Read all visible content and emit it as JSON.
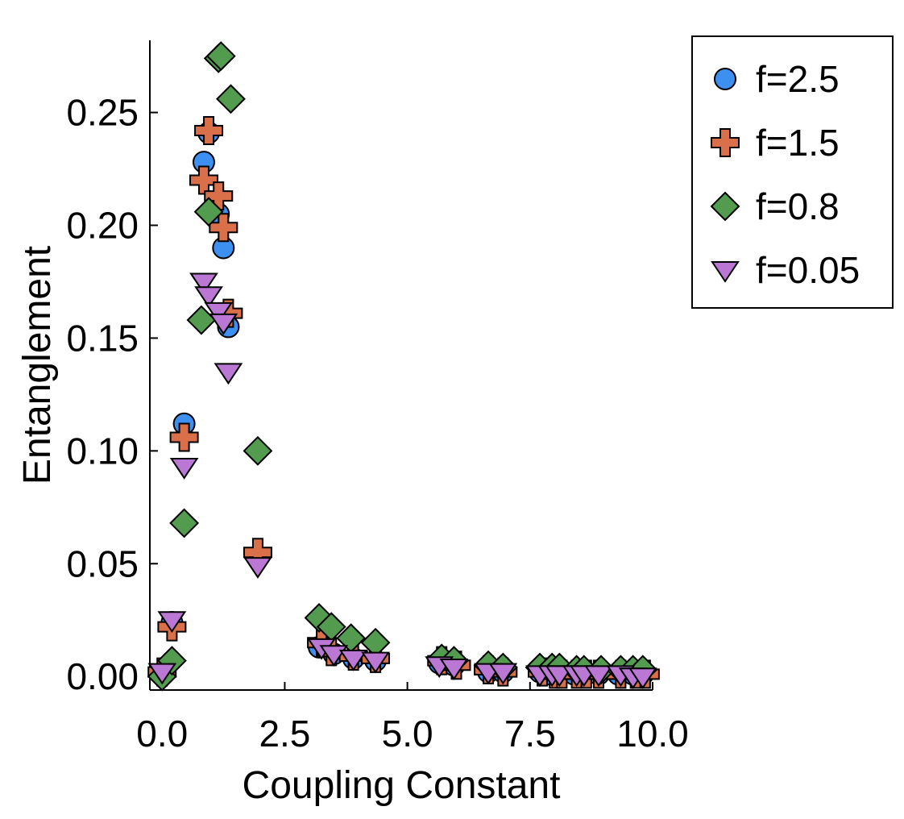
{
  "chart_data": {
    "type": "scatter",
    "title": "",
    "xlabel": "Coupling Constant",
    "ylabel": "Entanglement",
    "xlim": [
      -0.25,
      10.0
    ],
    "ylim": [
      -0.006,
      0.282
    ],
    "xticks": [
      0.0,
      2.5,
      5.0,
      7.5,
      10.0
    ],
    "xtick_labels": [
      "0.0",
      "2.5",
      "5.0",
      "7.5",
      "10.0"
    ],
    "yticks": [
      0.0,
      0.05,
      0.1,
      0.15,
      0.2,
      0.25
    ],
    "ytick_labels": [
      "0.00",
      "0.05",
      "0.10",
      "0.15",
      "0.20",
      "0.25"
    ],
    "grid": false,
    "legend_position": "top-right",
    "series": [
      {
        "name": "f=2.5",
        "marker": "circle",
        "color": "#3d8ff0",
        "x": [
          0.0,
          0.2,
          0.45,
          0.85,
          0.95,
          1.15,
          1.25,
          1.35,
          1.95,
          3.2,
          3.5,
          3.9,
          4.35,
          5.65,
          5.95,
          6.65,
          6.95,
          7.7,
          7.9,
          8.1,
          8.4,
          8.6,
          8.9,
          9.3,
          9.6,
          9.8
        ],
        "y": [
          0.001,
          0.024,
          0.112,
          0.228,
          0.241,
          0.205,
          0.19,
          0.155,
          0.053,
          0.013,
          0.01,
          0.008,
          0.007,
          0.006,
          0.005,
          0.002,
          0.002,
          0.002,
          0.001,
          0.001,
          0.001,
          0.001,
          0.001,
          0.001,
          0.001,
          0.001
        ]
      },
      {
        "name": "f=1.5",
        "marker": "plus",
        "color": "#d9704a",
        "x": [
          0.0,
          0.2,
          0.45,
          0.85,
          0.95,
          1.15,
          1.25,
          1.35,
          1.95,
          3.25,
          3.45,
          3.9,
          4.35,
          5.7,
          6.0,
          6.65,
          6.95,
          7.75,
          8.0,
          8.15,
          8.45,
          8.65,
          8.9,
          9.35,
          9.65,
          9.85
        ],
        "y": [
          0.002,
          0.022,
          0.106,
          0.22,
          0.242,
          0.213,
          0.199,
          0.161,
          0.055,
          0.015,
          0.011,
          0.009,
          0.008,
          0.007,
          0.005,
          0.003,
          0.002,
          0.002,
          0.001,
          0.001,
          0.001,
          0.001,
          0.001,
          0.001,
          0.001,
          0.001
        ]
      },
      {
        "name": "f=0.8",
        "marker": "diamond",
        "color": "#529b4f",
        "x": [
          0.0,
          0.2,
          0.45,
          0.8,
          0.95,
          1.15,
          1.2,
          1.4,
          1.95,
          3.2,
          3.45,
          3.85,
          4.35,
          5.7,
          5.95,
          6.65,
          6.95,
          7.7,
          7.95,
          8.1,
          8.45,
          8.6,
          8.95,
          9.35,
          9.6,
          9.8
        ],
        "y": [
          0.0,
          0.007,
          0.068,
          0.158,
          0.206,
          0.274,
          0.275,
          0.256,
          0.1,
          0.026,
          0.022,
          0.017,
          0.015,
          0.008,
          0.007,
          0.005,
          0.004,
          0.004,
          0.004,
          0.004,
          0.003,
          0.003,
          0.003,
          0.003,
          0.003,
          0.003
        ]
      },
      {
        "name": "f=0.05",
        "marker": "triangle-down",
        "color": "#bb77d4",
        "x": [
          0.0,
          0.2,
          0.45,
          0.85,
          0.95,
          1.15,
          1.25,
          1.35,
          1.95,
          3.25,
          3.5,
          3.9,
          4.35,
          5.65,
          5.95,
          6.65,
          6.95,
          7.7,
          7.95,
          8.1,
          8.45,
          8.6,
          8.9,
          9.35,
          9.6,
          9.8
        ],
        "y": [
          0.002,
          0.025,
          0.093,
          0.175,
          0.169,
          0.162,
          0.157,
          0.135,
          0.049,
          0.013,
          0.01,
          0.008,
          0.007,
          0.005,
          0.004,
          0.002,
          0.002,
          0.001,
          0.001,
          0.001,
          0.001,
          0.001,
          0.001,
          0.001,
          0.0,
          0.0
        ]
      }
    ]
  }
}
